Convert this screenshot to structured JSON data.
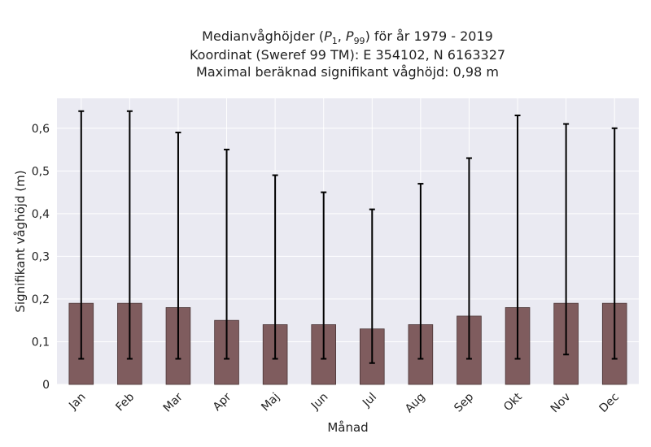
{
  "title": {
    "line1_prefix": "Medianvåghöjder (",
    "p1": "P",
    "p1_sub": "1",
    "sep": ", ",
    "p99": "P",
    "p99_sub": "99",
    "line1_suffix": ") för år 1979 - 2019",
    "line2": "Koordinat (Sweref 99 TM): E 354102, N 6163327",
    "line3": "Maximal beräknad signifikant våghöjd: 0,98 m"
  },
  "chart_data": {
    "type": "bar",
    "xlabel": "Månad",
    "ylabel": "Signifikant våghöjd (m)",
    "categories": [
      "Jan",
      "Feb",
      "Mar",
      "Apr",
      "Maj",
      "Jun",
      "Jul",
      "Aug",
      "Sep",
      "Okt",
      "Nov",
      "Dec"
    ],
    "values": [
      0.19,
      0.19,
      0.18,
      0.15,
      0.14,
      0.14,
      0.13,
      0.14,
      0.16,
      0.18,
      0.19,
      0.19
    ],
    "error_low": [
      0.06,
      0.06,
      0.06,
      0.06,
      0.06,
      0.06,
      0.05,
      0.06,
      0.06,
      0.06,
      0.07,
      0.06
    ],
    "error_high": [
      0.64,
      0.64,
      0.59,
      0.55,
      0.49,
      0.45,
      0.41,
      0.47,
      0.53,
      0.63,
      0.61,
      0.6
    ],
    "ylim": [
      0,
      0.67
    ],
    "yticks": [
      0,
      0.1,
      0.2,
      0.3,
      0.4,
      0.5,
      0.6
    ],
    "ytick_labels": [
      "0",
      "0,1",
      "0,2",
      "0,3",
      "0,4",
      "0,5",
      "0,6"
    ],
    "grid": true,
    "colors": {
      "bar": "#7f5c5e",
      "bar_edge": "#4a3536",
      "error": "#000000",
      "plot_bg": "#eaeaf2",
      "grid": "#ffffff"
    }
  }
}
